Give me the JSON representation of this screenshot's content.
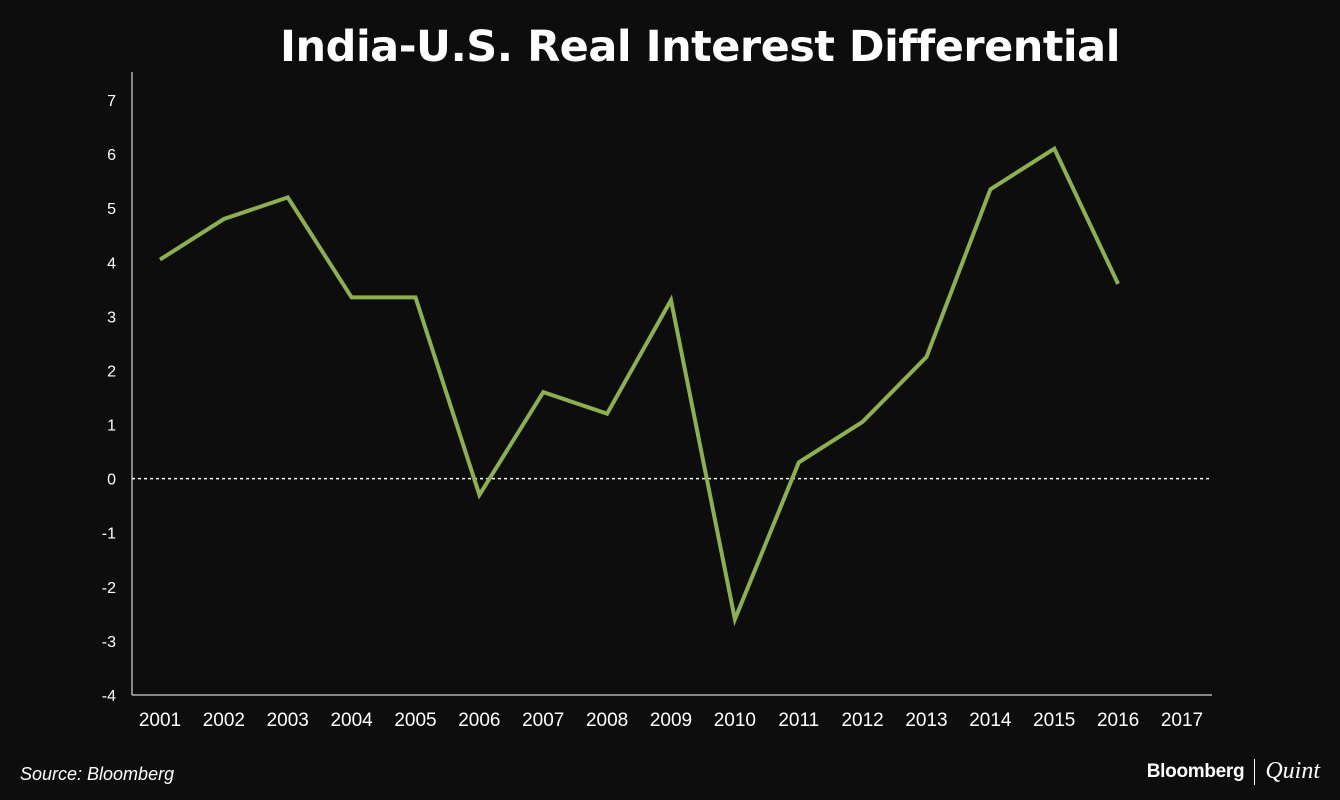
{
  "title": "India-U.S. Real Interest Differential",
  "source": "Source: Bloomberg",
  "brand": {
    "bloomberg": "Bloomberg",
    "quint": "Quint"
  },
  "colors": {
    "background": "#0d0d0d",
    "line": "#8db04e",
    "axis": "#ffffff",
    "zero_line": "#ffffff"
  },
  "chart_data": {
    "type": "line",
    "title": "India-U.S. Real Interest Differential",
    "xlabel": "",
    "ylabel": "",
    "ylim": [
      -4,
      7
    ],
    "yticks": [
      "7",
      "6",
      "5",
      "4",
      "3",
      "2",
      "1",
      "0",
      "-1",
      "-2",
      "-3",
      "-4"
    ],
    "categories": [
      "2001",
      "2002",
      "2003",
      "2004",
      "2005",
      "2006",
      "2007",
      "2008",
      "2009",
      "2010",
      "2011",
      "2012",
      "2013",
      "2014",
      "2015",
      "2016",
      "2017"
    ],
    "zero_line": "dotted",
    "series": [
      {
        "name": "India-U.S. Real Interest Differential",
        "x": [
          2001.0,
          2002.0,
          2003.0,
          2004.0,
          2005.0,
          2006.0,
          2007.0,
          2008.0,
          2009.0,
          2010.0,
          2011.0,
          2012.0,
          2013.0,
          2014.0,
          2015.0,
          2016.0
        ],
        "values": [
          4.05,
          4.8,
          5.2,
          3.35,
          3.35,
          -0.3,
          1.6,
          1.2,
          3.3,
          -2.6,
          0.3,
          1.05,
          2.25,
          5.35,
          6.1,
          3.6
        ]
      }
    ]
  }
}
